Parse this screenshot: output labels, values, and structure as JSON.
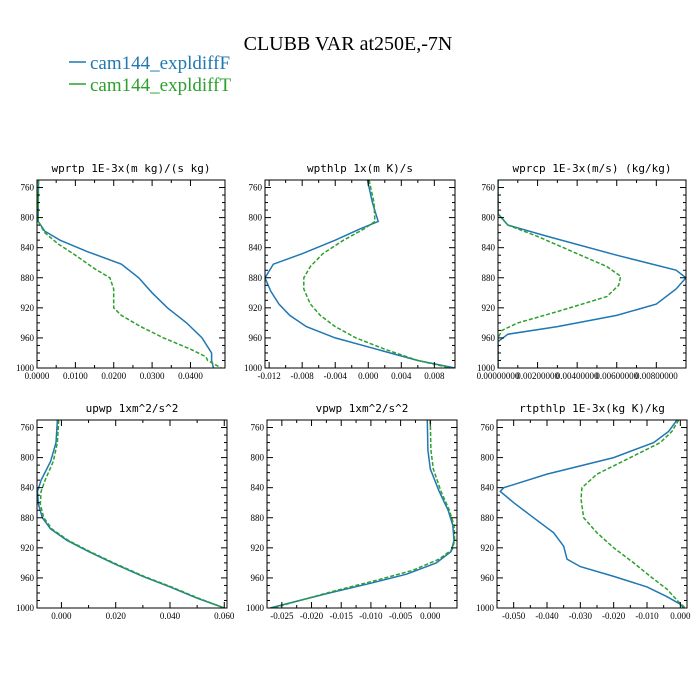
{
  "title": "CLUBB VAR at250E,-7N",
  "legend": [
    {
      "name": "cam144_expldiffF",
      "color": "#1f77b4",
      "dash": "solid"
    },
    {
      "name": "cam144_expldiffT",
      "color": "#2ca02c",
      "dash": "dashed"
    }
  ],
  "chart_data": [
    {
      "type": "line",
      "title": "wprtp  1E-3x(m kg)/(s kg)",
      "xlim": [
        0.0,
        0.049
      ],
      "ylim": [
        750,
        1000
      ],
      "y_inverted": true,
      "xticks": [
        0.0,
        0.01,
        0.02,
        0.03,
        0.04
      ],
      "xtick_labels": [
        "0.0000",
        "0.0100",
        "0.0200",
        "0.0300",
        "0.0400"
      ],
      "yticks": [
        760,
        800,
        840,
        880,
        920,
        960,
        1000
      ],
      "series": [
        {
          "name": "cam144_expldiffF",
          "points": [
            [
              0.0004,
              750
            ],
            [
              0.0003,
              790
            ],
            [
              0.0003,
              805
            ],
            [
              0.002,
              818
            ],
            [
              0.006,
              830
            ],
            [
              0.013,
              845
            ],
            [
              0.022,
              862
            ],
            [
              0.0265,
              880
            ],
            [
              0.03,
              900
            ],
            [
              0.034,
              920
            ],
            [
              0.039,
              940
            ],
            [
              0.043,
              960
            ],
            [
              0.0455,
              980
            ],
            [
              0.0455,
              990
            ],
            [
              0.046,
              1000
            ]
          ]
        },
        {
          "name": "cam144_expldiffT",
          "points": [
            [
              0.0004,
              750
            ],
            [
              0.0003,
              790
            ],
            [
              0.0003,
              805
            ],
            [
              0.002,
              820
            ],
            [
              0.0055,
              835
            ],
            [
              0.01,
              850
            ],
            [
              0.015,
              868
            ],
            [
              0.019,
              880
            ],
            [
              0.02,
              895
            ],
            [
              0.02,
              920
            ],
            [
              0.022,
              930
            ],
            [
              0.027,
              945
            ],
            [
              0.033,
              960
            ],
            [
              0.04,
              975
            ],
            [
              0.044,
              985
            ],
            [
              0.0445,
              990
            ],
            [
              0.048,
              1000
            ]
          ]
        }
      ]
    },
    {
      "type": "line",
      "title": "wpthlp  1x(m K)/s",
      "xlim": [
        -0.0125,
        0.0105
      ],
      "ylim": [
        750,
        1000
      ],
      "y_inverted": true,
      "xticks": [
        -0.012,
        -0.008,
        -0.004,
        0.0,
        0.004,
        0.008
      ],
      "xtick_labels": [
        "-0.012",
        "-0.008",
        "-0.004",
        "0.000",
        "0.004",
        "0.008"
      ],
      "yticks": [
        760,
        800,
        840,
        880,
        920,
        960,
        1000
      ],
      "series": [
        {
          "name": "cam144_expldiffF",
          "points": [
            [
              -0.0001,
              750
            ],
            [
              0.0005,
              780
            ],
            [
              0.0012,
              805
            ],
            [
              -0.001,
              815
            ],
            [
              -0.004,
              830
            ],
            [
              -0.008,
              848
            ],
            [
              -0.0115,
              862
            ],
            [
              -0.0125,
              880
            ],
            [
              -0.0118,
              898
            ],
            [
              -0.0108,
              915
            ],
            [
              -0.0095,
              930
            ],
            [
              -0.0075,
              945
            ],
            [
              -0.004,
              960
            ],
            [
              0.001,
              975
            ],
            [
              0.006,
              990
            ],
            [
              0.0105,
              1000
            ]
          ]
        },
        {
          "name": "cam144_expldiffT",
          "points": [
            [
              0.0001,
              750
            ],
            [
              0.0007,
              780
            ],
            [
              0.0008,
              805
            ],
            [
              -0.0005,
              815
            ],
            [
              -0.003,
              830
            ],
            [
              -0.0055,
              848
            ],
            [
              -0.007,
              865
            ],
            [
              -0.0078,
              880
            ],
            [
              -0.0078,
              895
            ],
            [
              -0.007,
              915
            ],
            [
              -0.0058,
              930
            ],
            [
              -0.004,
              945
            ],
            [
              -0.0015,
              960
            ],
            [
              0.002,
              975
            ],
            [
              0.006,
              990
            ],
            [
              0.01,
              1000
            ]
          ]
        }
      ]
    },
    {
      "type": "line",
      "title": "wprcp  1E-3x(m/s) (kg/kg)",
      "xlim": [
        0.0,
        0.0095
      ],
      "ylim": [
        750,
        1000
      ],
      "y_inverted": true,
      "xticks": [
        0.0,
        0.002,
        0.004,
        0.006,
        0.008
      ],
      "xtick_labels": [
        "0.00000000",
        "0.00200000",
        "0.00400000",
        "0.00600000",
        "0.00800000"
      ],
      "yticks": [
        760,
        800,
        840,
        880,
        920,
        960,
        1000
      ],
      "series": [
        {
          "name": "cam144_expldiffF",
          "points": [
            [
              0.0,
              750
            ],
            [
              0.0,
              795
            ],
            [
              0.0005,
              810
            ],
            [
              0.0025,
              825
            ],
            [
              0.006,
              850
            ],
            [
              0.009,
              870
            ],
            [
              0.0095,
              880
            ],
            [
              0.009,
              895
            ],
            [
              0.008,
              915
            ],
            [
              0.006,
              930
            ],
            [
              0.003,
              945
            ],
            [
              0.0005,
              955
            ],
            [
              0.0,
              965
            ],
            [
              0.0,
              1000
            ]
          ]
        },
        {
          "name": "cam144_expldiffT",
          "points": [
            [
              0.0,
              750
            ],
            [
              0.0,
              795
            ],
            [
              0.0005,
              810
            ],
            [
              0.002,
              825
            ],
            [
              0.004,
              848
            ],
            [
              0.0055,
              865
            ],
            [
              0.0062,
              878
            ],
            [
              0.0061,
              890
            ],
            [
              0.0055,
              905
            ],
            [
              0.003,
              925
            ],
            [
              0.001,
              940
            ],
            [
              0.0002,
              950
            ],
            [
              0.0,
              960
            ],
            [
              0.0,
              1000
            ]
          ]
        }
      ]
    },
    {
      "type": "line",
      "title": "upwp  1xm^2/s^2",
      "xlim": [
        -0.009,
        0.061
      ],
      "ylim": [
        750,
        1000
      ],
      "y_inverted": true,
      "xticks": [
        0.0,
        0.02,
        0.04,
        0.06
      ],
      "xtick_labels": [
        "0.000",
        "0.020",
        "0.040",
        "0.060"
      ],
      "yticks": [
        760,
        800,
        840,
        880,
        920,
        960,
        1000
      ],
      "series": [
        {
          "name": "cam144_expldiffF",
          "points": [
            [
              -0.0015,
              750
            ],
            [
              -0.002,
              780
            ],
            [
              -0.004,
              805
            ],
            [
              -0.0075,
              830
            ],
            [
              -0.0088,
              845
            ],
            [
              -0.0085,
              862
            ],
            [
              -0.007,
              880
            ],
            [
              -0.004,
              895
            ],
            [
              0.002,
              910
            ],
            [
              0.01,
              925
            ],
            [
              0.02,
              942
            ],
            [
              0.03,
              958
            ],
            [
              0.04,
              972
            ],
            [
              0.05,
              987
            ],
            [
              0.06,
              1000
            ]
          ]
        },
        {
          "name": "cam144_expldiffT",
          "points": [
            [
              -0.001,
              750
            ],
            [
              -0.0015,
              780
            ],
            [
              -0.003,
              805
            ],
            [
              -0.006,
              830
            ],
            [
              -0.0075,
              845
            ],
            [
              -0.0078,
              862
            ],
            [
              -0.0065,
              880
            ],
            [
              -0.0035,
              895
            ],
            [
              0.0025,
              910
            ],
            [
              0.0105,
              925
            ],
            [
              0.0205,
              942
            ],
            [
              0.0305,
              958
            ],
            [
              0.0405,
              972
            ],
            [
              0.0505,
              987
            ],
            [
              0.06,
              1000
            ]
          ]
        }
      ]
    },
    {
      "type": "line",
      "title": "vpwp  1xm^2/s^2",
      "xlim": [
        -0.0275,
        0.0045
      ],
      "ylim": [
        750,
        1000
      ],
      "y_inverted": true,
      "xticks": [
        -0.025,
        -0.02,
        -0.015,
        -0.01,
        -0.005,
        0.0
      ],
      "xtick_labels": [
        "-0.025",
        "-0.020",
        "-0.015",
        "-0.010",
        "-0.005",
        "0.000"
      ],
      "yticks": [
        760,
        800,
        840,
        880,
        920,
        960,
        1000
      ],
      "series": [
        {
          "name": "cam144_expldiffF",
          "points": [
            [
              -0.0005,
              750
            ],
            [
              -0.0004,
              790
            ],
            [
              0.0,
              815
            ],
            [
              0.0015,
              845
            ],
            [
              0.003,
              870
            ],
            [
              0.0038,
              890
            ],
            [
              0.004,
              910
            ],
            [
              0.0035,
              925
            ],
            [
              0.001,
              940
            ],
            [
              -0.004,
              955
            ],
            [
              -0.01,
              967
            ],
            [
              -0.017,
              980
            ],
            [
              -0.023,
              992
            ],
            [
              -0.027,
              1000
            ]
          ]
        },
        {
          "name": "cam144_expldiffT",
          "points": [
            [
              0.0,
              750
            ],
            [
              0.0001,
              790
            ],
            [
              0.0005,
              815
            ],
            [
              0.0018,
              845
            ],
            [
              0.0032,
              870
            ],
            [
              0.004,
              890
            ],
            [
              0.0041,
              910
            ],
            [
              0.0037,
              922
            ],
            [
              0.0015,
              935
            ],
            [
              -0.003,
              950
            ],
            [
              -0.009,
              963
            ],
            [
              -0.016,
              977
            ],
            [
              -0.022,
              990
            ],
            [
              -0.0265,
              1000
            ]
          ]
        }
      ]
    },
    {
      "type": "line",
      "title": "rtpthlp  1E-3x(kg K)/kg",
      "xlim": [
        -0.055,
        0.002
      ],
      "ylim": [
        750,
        1000
      ],
      "y_inverted": true,
      "xticks": [
        -0.05,
        -0.04,
        -0.03,
        -0.02,
        -0.01,
        0.0
      ],
      "xtick_labels": [
        "-0.050",
        "-0.040",
        "-0.030",
        "-0.020",
        "-0.010",
        "0.000"
      ],
      "yticks": [
        760,
        800,
        840,
        880,
        920,
        960,
        1000
      ],
      "series": [
        {
          "name": "cam144_expldiffF",
          "points": [
            [
              -0.001,
              750
            ],
            [
              -0.0035,
              765
            ],
            [
              -0.008,
              780
            ],
            [
              -0.02,
              800
            ],
            [
              -0.04,
              822
            ],
            [
              -0.053,
              840
            ],
            [
              -0.054,
              845
            ],
            [
              -0.05,
              860
            ],
            [
              -0.044,
              880
            ],
            [
              -0.038,
              900
            ],
            [
              -0.035,
              918
            ],
            [
              -0.034,
              935
            ],
            [
              -0.03,
              945
            ],
            [
              -0.02,
              958
            ],
            [
              -0.01,
              972
            ],
            [
              -0.004,
              985
            ],
            [
              0.0,
              995
            ],
            [
              0.001,
              1000
            ]
          ]
        },
        {
          "name": "cam144_expldiffT",
          "points": [
            [
              -0.0005,
              750
            ],
            [
              -0.0025,
              765
            ],
            [
              -0.006,
              780
            ],
            [
              -0.015,
              800
            ],
            [
              -0.025,
              822
            ],
            [
              -0.0295,
              840
            ],
            [
              -0.0298,
              855
            ],
            [
              -0.029,
              880
            ],
            [
              -0.025,
              900
            ],
            [
              -0.02,
              920
            ],
            [
              -0.014,
              940
            ],
            [
              -0.009,
              958
            ],
            [
              -0.004,
              975
            ],
            [
              -0.0005,
              992
            ],
            [
              0.0015,
              1000
            ]
          ]
        }
      ]
    }
  ]
}
